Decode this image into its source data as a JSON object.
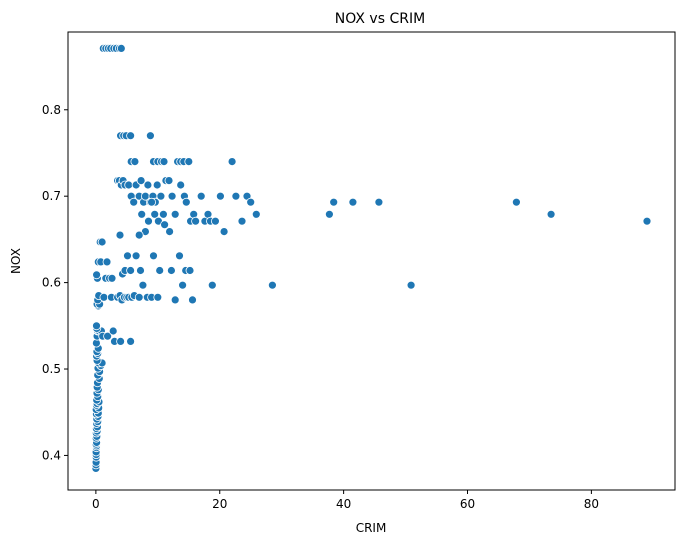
{
  "chart_data": {
    "type": "scatter",
    "title": "NOX vs CRIM",
    "xlabel": "CRIM",
    "ylabel": "NOX",
    "xlim": [
      -4.5,
      93.5
    ],
    "ylim": [
      0.36,
      0.89
    ],
    "xticks": [
      0,
      20,
      40,
      60,
      80
    ],
    "xtick_labels": [
      "0",
      "20",
      "40",
      "60",
      "80"
    ],
    "yticks": [
      0.4,
      0.5,
      0.6,
      0.7,
      0.8
    ],
    "ytick_labels": [
      "0.4",
      "0.5",
      "0.6",
      "0.7",
      "0.8"
    ],
    "grid": false,
    "legend": "none",
    "marker_color": "#1f77b4",
    "marker_edge_color": "#ffffff",
    "series": [
      {
        "points": [
          [
            0.01,
            0.385
          ],
          [
            0.02,
            0.389
          ],
          [
            0.03,
            0.392
          ],
          [
            0.05,
            0.398
          ],
          [
            0.06,
            0.401
          ],
          [
            0.03,
            0.404
          ],
          [
            0.08,
            0.409
          ],
          [
            0.1,
            0.411
          ],
          [
            0.04,
            0.413
          ],
          [
            0.12,
            0.415
          ],
          [
            0.05,
            0.42
          ],
          [
            0.15,
            0.422
          ],
          [
            0.07,
            0.426
          ],
          [
            0.2,
            0.428
          ],
          [
            0.09,
            0.431
          ],
          [
            0.25,
            0.433
          ],
          [
            0.12,
            0.437
          ],
          [
            0.3,
            0.439
          ],
          [
            0.15,
            0.442
          ],
          [
            0.35,
            0.445
          ],
          [
            0.09,
            0.448
          ],
          [
            0.4,
            0.449
          ],
          [
            0.06,
            0.453
          ],
          [
            0.45,
            0.455
          ],
          [
            0.1,
            0.458
          ],
          [
            0.2,
            0.46
          ],
          [
            0.5,
            0.462
          ],
          [
            0.14,
            0.464
          ],
          [
            0.3,
            0.468
          ],
          [
            0.18,
            0.472
          ],
          [
            0.4,
            0.476
          ],
          [
            0.22,
            0.479
          ],
          [
            0.26,
            0.484
          ],
          [
            0.55,
            0.489
          ],
          [
            0.3,
            0.493
          ],
          [
            0.6,
            0.497
          ],
          [
            0.35,
            0.501
          ],
          [
            0.8,
            0.504
          ],
          [
            0.45,
            0.507
          ],
          [
            1.0,
            0.507
          ],
          [
            0.2,
            0.51
          ],
          [
            0.12,
            0.515
          ],
          [
            0.3,
            0.518
          ],
          [
            0.16,
            0.52
          ],
          [
            0.4,
            0.524
          ],
          [
            0.08,
            0.53
          ],
          [
            0.2,
            0.538
          ],
          [
            0.3,
            0.544
          ],
          [
            0.5,
            0.544
          ],
          [
            0.9,
            0.544
          ],
          [
            1.1,
            0.538
          ],
          [
            0.15,
            0.547
          ],
          [
            0.1,
            0.55
          ],
          [
            0.4,
            0.573
          ],
          [
            0.2,
            0.575
          ],
          [
            0.6,
            0.575
          ],
          [
            0.3,
            0.58
          ],
          [
            0.45,
            0.585
          ],
          [
            0.25,
            0.605
          ],
          [
            0.12,
            0.609
          ],
          [
            0.4,
            0.624
          ],
          [
            0.8,
            0.624
          ],
          [
            0.7,
            0.647
          ],
          [
            1.0,
            0.647
          ],
          [
            1.6,
            0.605
          ],
          [
            2.2,
            0.605
          ],
          [
            2.6,
            0.605
          ],
          [
            1.8,
            0.624
          ],
          [
            1.3,
            0.583
          ],
          [
            1.9,
            0.538
          ],
          [
            2.8,
            0.544
          ],
          [
            3.0,
            0.532
          ],
          [
            4.0,
            0.532
          ],
          [
            5.6,
            0.532
          ],
          [
            2.5,
            0.583
          ],
          [
            3.5,
            0.583
          ],
          [
            3.9,
            0.585
          ],
          [
            4.2,
            0.58
          ],
          [
            4.6,
            0.583
          ],
          [
            5.0,
            0.583
          ],
          [
            5.3,
            0.583
          ],
          [
            5.8,
            0.583
          ],
          [
            6.2,
            0.585
          ],
          [
            7.0,
            0.583
          ],
          [
            8.3,
            0.583
          ],
          [
            9.0,
            0.583
          ],
          [
            10.0,
            0.583
          ],
          [
            12.8,
            0.58
          ],
          [
            15.6,
            0.58
          ],
          [
            3.9,
            0.655
          ],
          [
            4.3,
            0.61
          ],
          [
            4.7,
            0.614
          ],
          [
            5.1,
            0.631
          ],
          [
            5.6,
            0.614
          ],
          [
            6.5,
            0.631
          ],
          [
            7.2,
            0.614
          ],
          [
            7.6,
            0.597
          ],
          [
            9.3,
            0.631
          ],
          [
            10.3,
            0.614
          ],
          [
            12.2,
            0.614
          ],
          [
            13.5,
            0.631
          ],
          [
            14.0,
            0.597
          ],
          [
            14.5,
            0.614
          ],
          [
            15.2,
            0.614
          ],
          [
            18.8,
            0.597
          ],
          [
            28.5,
            0.597
          ],
          [
            50.9,
            0.597
          ],
          [
            3.5,
            0.718
          ],
          [
            3.8,
            0.718
          ],
          [
            4.1,
            0.713
          ],
          [
            4.4,
            0.718
          ],
          [
            4.7,
            0.713
          ],
          [
            5.3,
            0.713
          ],
          [
            5.7,
            0.7
          ],
          [
            6.1,
            0.693
          ],
          [
            6.5,
            0.713
          ],
          [
            7.0,
            0.7
          ],
          [
            7.3,
            0.718
          ],
          [
            7.7,
            0.693
          ],
          [
            8.0,
            0.7
          ],
          [
            8.4,
            0.713
          ],
          [
            8.8,
            0.693
          ],
          [
            9.2,
            0.7
          ],
          [
            9.6,
            0.693
          ],
          [
            9.9,
            0.713
          ],
          [
            10.5,
            0.7
          ],
          [
            10.9,
            0.679
          ],
          [
            11.3,
            0.718
          ],
          [
            11.8,
            0.718
          ],
          [
            12.3,
            0.7
          ],
          [
            12.8,
            0.679
          ],
          [
            13.7,
            0.713
          ],
          [
            14.3,
            0.7
          ],
          [
            14.6,
            0.693
          ],
          [
            15.3,
            0.671
          ],
          [
            15.8,
            0.679
          ],
          [
            16.1,
            0.671
          ],
          [
            17.0,
            0.7
          ],
          [
            17.6,
            0.671
          ],
          [
            18.1,
            0.679
          ],
          [
            18.5,
            0.671
          ],
          [
            19.3,
            0.671
          ],
          [
            20.1,
            0.7
          ],
          [
            20.7,
            0.659
          ],
          [
            22.6,
            0.7
          ],
          [
            23.6,
            0.671
          ],
          [
            24.4,
            0.7
          ],
          [
            25.0,
            0.693
          ],
          [
            25.9,
            0.679
          ],
          [
            37.7,
            0.679
          ],
          [
            38.4,
            0.693
          ],
          [
            41.5,
            0.693
          ],
          [
            45.7,
            0.693
          ],
          [
            67.9,
            0.693
          ],
          [
            73.5,
            0.679
          ],
          [
            88.98,
            0.671
          ],
          [
            5.7,
            0.74
          ],
          [
            6.3,
            0.74
          ],
          [
            9.3,
            0.74
          ],
          [
            10.0,
            0.74
          ],
          [
            10.6,
            0.74
          ],
          [
            11.0,
            0.74
          ],
          [
            13.2,
            0.74
          ],
          [
            13.7,
            0.74
          ],
          [
            14.2,
            0.74
          ],
          [
            15.0,
            0.74
          ],
          [
            22.0,
            0.74
          ],
          [
            7.4,
            0.679
          ],
          [
            8.0,
            0.659
          ],
          [
            8.5,
            0.671
          ],
          [
            9.5,
            0.679
          ],
          [
            10.1,
            0.671
          ],
          [
            11.1,
            0.667
          ],
          [
            11.9,
            0.659
          ],
          [
            9.0,
            0.693
          ],
          [
            7.0,
            0.655
          ],
          [
            4.0,
            0.77
          ],
          [
            4.5,
            0.77
          ],
          [
            4.9,
            0.77
          ],
          [
            5.6,
            0.77
          ],
          [
            8.8,
            0.77
          ],
          [
            1.2,
            0.871
          ],
          [
            1.6,
            0.871
          ],
          [
            2.0,
            0.871
          ],
          [
            2.4,
            0.871
          ],
          [
            2.9,
            0.871
          ],
          [
            3.3,
            0.871
          ],
          [
            3.8,
            0.871
          ],
          [
            4.1,
            0.871
          ]
        ]
      }
    ]
  }
}
